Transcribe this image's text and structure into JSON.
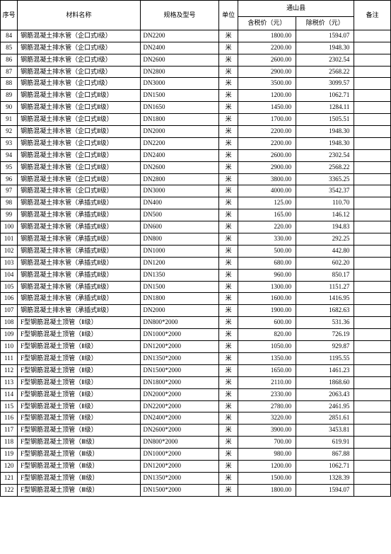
{
  "table": {
    "header": {
      "index": "序号",
      "material": "材料名称",
      "spec": "规格及型号",
      "unit": "单位",
      "county_group": "通山县",
      "price_tax": "含税价（元）",
      "price_notax": "除税价（元）",
      "note": "备注"
    },
    "rows": [
      {
        "idx": "84",
        "name": "钢筋混凝土排水管（企口式Ⅰ级）",
        "spec": "DN2200",
        "unit": "米",
        "p1": "1800.00",
        "p2": "1594.07",
        "note": ""
      },
      {
        "idx": "85",
        "name": "钢筋混凝土排水管（企口式Ⅰ级）",
        "spec": "DN2400",
        "unit": "米",
        "p1": "2200.00",
        "p2": "1948.30",
        "note": ""
      },
      {
        "idx": "86",
        "name": "钢筋混凝土排水管（企口式Ⅰ级）",
        "spec": "DN2600",
        "unit": "米",
        "p1": "2600.00",
        "p2": "2302.54",
        "note": ""
      },
      {
        "idx": "87",
        "name": "钢筋混凝土排水管（企口式Ⅰ级）",
        "spec": "DN2800",
        "unit": "米",
        "p1": "2900.00",
        "p2": "2568.22",
        "note": ""
      },
      {
        "idx": "88",
        "name": "钢筋混凝土排水管（企口式Ⅰ级）",
        "spec": "DN3000",
        "unit": "米",
        "p1": "3500.00",
        "p2": "3099.57",
        "note": ""
      },
      {
        "idx": "89",
        "name": "钢筋混凝土排水管（企口式Ⅱ级）",
        "spec": "DN1500",
        "unit": "米",
        "p1": "1200.00",
        "p2": "1062.71",
        "note": ""
      },
      {
        "idx": "90",
        "name": "钢筋混凝土排水管（企口式Ⅱ级）",
        "spec": "DN1650",
        "unit": "米",
        "p1": "1450.00",
        "p2": "1284.11",
        "note": ""
      },
      {
        "idx": "91",
        "name": "钢筋混凝土排水管（企口式Ⅱ级）",
        "spec": "DN1800",
        "unit": "米",
        "p1": "1700.00",
        "p2": "1505.51",
        "note": ""
      },
      {
        "idx": "92",
        "name": "钢筋混凝土排水管（企口式Ⅱ级）",
        "spec": "DN2000",
        "unit": "米",
        "p1": "2200.00",
        "p2": "1948.30",
        "note": ""
      },
      {
        "idx": "93",
        "name": "钢筋混凝土排水管（企口式Ⅱ级）",
        "spec": "DN2200",
        "unit": "米",
        "p1": "2200.00",
        "p2": "1948.30",
        "note": ""
      },
      {
        "idx": "94",
        "name": "钢筋混凝土排水管（企口式Ⅱ级）",
        "spec": "DN2400",
        "unit": "米",
        "p1": "2600.00",
        "p2": "2302.54",
        "note": ""
      },
      {
        "idx": "95",
        "name": "钢筋混凝土排水管（企口式Ⅱ级）",
        "spec": "DN2600",
        "unit": "米",
        "p1": "2900.00",
        "p2": "2568.22",
        "note": ""
      },
      {
        "idx": "96",
        "name": "钢筋混凝土排水管（企口式Ⅱ级）",
        "spec": "DN2800",
        "unit": "米",
        "p1": "3800.00",
        "p2": "3365.25",
        "note": ""
      },
      {
        "idx": "97",
        "name": "钢筋混凝土排水管（企口式Ⅱ级）",
        "spec": "DN3000",
        "unit": "米",
        "p1": "4000.00",
        "p2": "3542.37",
        "note": ""
      },
      {
        "idx": "98",
        "name": "钢筋混凝土排水管（承插式Ⅱ级）",
        "spec": "DN400",
        "unit": "米",
        "p1": "125.00",
        "p2": "110.70",
        "note": ""
      },
      {
        "idx": "99",
        "name": "钢筋混凝土排水管（承插式Ⅱ级）",
        "spec": "DN500",
        "unit": "米",
        "p1": "165.00",
        "p2": "146.12",
        "note": ""
      },
      {
        "idx": "100",
        "name": "钢筋混凝土排水管（承插式Ⅱ级）",
        "spec": "DN600",
        "unit": "米",
        "p1": "220.00",
        "p2": "194.83",
        "note": ""
      },
      {
        "idx": "101",
        "name": "钢筋混凝土排水管（承插式Ⅱ级）",
        "spec": "DN800",
        "unit": "米",
        "p1": "330.00",
        "p2": "292.25",
        "note": ""
      },
      {
        "idx": "102",
        "name": "钢筋混凝土排水管（承插式Ⅱ级）",
        "spec": "DN1000",
        "unit": "米",
        "p1": "500.00",
        "p2": "442.80",
        "note": ""
      },
      {
        "idx": "103",
        "name": "钢筋混凝土排水管（承插式Ⅱ级）",
        "spec": "DN1200",
        "unit": "米",
        "p1": "680.00",
        "p2": "602.20",
        "note": ""
      },
      {
        "idx": "104",
        "name": "钢筋混凝土排水管（承插式Ⅱ级）",
        "spec": "DN1350",
        "unit": "米",
        "p1": "960.00",
        "p2": "850.17",
        "note": ""
      },
      {
        "idx": "105",
        "name": "钢筋混凝土排水管（承插式Ⅱ级）",
        "spec": "DN1500",
        "unit": "米",
        "p1": "1300.00",
        "p2": "1151.27",
        "note": ""
      },
      {
        "idx": "106",
        "name": "钢筋混凝土排水管（承插式Ⅱ级）",
        "spec": "DN1800",
        "unit": "米",
        "p1": "1600.00",
        "p2": "1416.95",
        "note": ""
      },
      {
        "idx": "107",
        "name": "钢筋混凝土排水管（承插式Ⅱ级）",
        "spec": "DN2000",
        "unit": "米",
        "p1": "1900.00",
        "p2": "1682.63",
        "note": ""
      },
      {
        "idx": "108",
        "name": "F型钢筋混凝土顶管（Ⅱ级）",
        "spec": "DN800*2000",
        "unit": "米",
        "p1": "600.00",
        "p2": "531.36",
        "note": ""
      },
      {
        "idx": "109",
        "name": "F型钢筋混凝土顶管（Ⅱ级）",
        "spec": "DN1000*2000",
        "unit": "米",
        "p1": "820.00",
        "p2": "726.19",
        "note": ""
      },
      {
        "idx": "110",
        "name": "F型钢筋混凝土顶管（Ⅱ级）",
        "spec": "DN1200*2000",
        "unit": "米",
        "p1": "1050.00",
        "p2": "929.87",
        "note": ""
      },
      {
        "idx": "111",
        "name": "F型钢筋混凝土顶管（Ⅱ级）",
        "spec": "DN1350*2000",
        "unit": "米",
        "p1": "1350.00",
        "p2": "1195.55",
        "note": ""
      },
      {
        "idx": "112",
        "name": "F型钢筋混凝土顶管（Ⅱ级）",
        "spec": "DN1500*2000",
        "unit": "米",
        "p1": "1650.00",
        "p2": "1461.23",
        "note": ""
      },
      {
        "idx": "113",
        "name": "F型钢筋混凝土顶管（Ⅱ级）",
        "spec": "DN1800*2000",
        "unit": "米",
        "p1": "2110.00",
        "p2": "1868.60",
        "note": ""
      },
      {
        "idx": "114",
        "name": "F型钢筋混凝土顶管（Ⅱ级）",
        "spec": "DN2000*2000",
        "unit": "米",
        "p1": "2330.00",
        "p2": "2063.43",
        "note": ""
      },
      {
        "idx": "115",
        "name": "F型钢筋混凝土顶管（Ⅱ级）",
        "spec": "DN2200*2000",
        "unit": "米",
        "p1": "2780.00",
        "p2": "2461.95",
        "note": ""
      },
      {
        "idx": "116",
        "name": "F型钢筋混凝土顶管（Ⅱ级）",
        "spec": "DN2400*2000",
        "unit": "米",
        "p1": "3220.00",
        "p2": "2851.61",
        "note": ""
      },
      {
        "idx": "117",
        "name": "F型钢筋混凝土顶管（Ⅱ级）",
        "spec": "DN2600*2000",
        "unit": "米",
        "p1": "3900.00",
        "p2": "3453.81",
        "note": ""
      },
      {
        "idx": "118",
        "name": "F型钢筋混凝土顶管（Ⅲ级）",
        "spec": "DN800*2000",
        "unit": "米",
        "p1": "700.00",
        "p2": "619.91",
        "note": ""
      },
      {
        "idx": "119",
        "name": "F型钢筋混凝土顶管（Ⅲ级）",
        "spec": "DN1000*2000",
        "unit": "米",
        "p1": "980.00",
        "p2": "867.88",
        "note": ""
      },
      {
        "idx": "120",
        "name": "F型钢筋混凝土顶管（Ⅲ级）",
        "spec": "DN1200*2000",
        "unit": "米",
        "p1": "1200.00",
        "p2": "1062.71",
        "note": ""
      },
      {
        "idx": "121",
        "name": "F型钢筋混凝土顶管（Ⅲ级）",
        "spec": "DN1350*2000",
        "unit": "米",
        "p1": "1500.00",
        "p2": "1328.39",
        "note": ""
      },
      {
        "idx": "122",
        "name": "F型钢筋混凝土顶管（Ⅲ级）",
        "spec": "DN1500*2000",
        "unit": "米",
        "p1": "1800.00",
        "p2": "1594.07",
        "note": ""
      }
    ],
    "style": {
      "border_color": "#000000",
      "background_color": "#ffffff",
      "font_family": "SimSun",
      "font_size_pt": 7,
      "header_align": "center",
      "idx_align": "center",
      "name_align": "left",
      "spec_align": "left",
      "unit_align": "center",
      "price_align": "right"
    }
  }
}
